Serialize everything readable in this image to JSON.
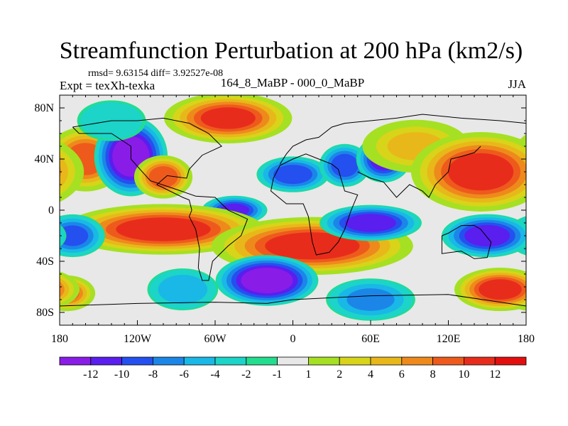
{
  "chart_data": {
    "type": "heatmap",
    "title": "Streamfunction Perturbation at 200 hPa (km2/s)",
    "subtitle_left_1": "rmsd= 9.63154 diff= 3.92527e-08",
    "subtitle_left_2": "Expt = texXh-texka",
    "subtitle_center": "164_8_MaBP - 000_0_MaBP",
    "subtitle_right": "JJA",
    "xlim": [
      -180,
      180
    ],
    "ylim": [
      -90,
      90
    ],
    "x_ticks": [
      {
        "value": -180,
        "label": "180"
      },
      {
        "value": -120,
        "label": "120W"
      },
      {
        "value": -60,
        "label": "60W"
      },
      {
        "value": 0,
        "label": "0"
      },
      {
        "value": 60,
        "label": "60E"
      },
      {
        "value": 120,
        "label": "120E"
      },
      {
        "value": 180,
        "label": "180"
      }
    ],
    "y_ticks": [
      {
        "value": 80,
        "label": "80N"
      },
      {
        "value": 40,
        "label": "40N"
      },
      {
        "value": 0,
        "label": "0"
      },
      {
        "value": -40,
        "label": "40S"
      },
      {
        "value": -80,
        "label": "80S"
      }
    ],
    "colorbar": {
      "labels": [
        "-12",
        "-10",
        "-8",
        "-6",
        "-4",
        "-2",
        "-1",
        "1",
        "2",
        "4",
        "6",
        "8",
        "10",
        "12"
      ],
      "colors": [
        "#8A1CE8",
        "#5A1EEE",
        "#2450F0",
        "#1B86E8",
        "#19B8E6",
        "#1CD4C8",
        "#22DD8E",
        "#E8E8E8",
        "#A6E022",
        "#D8D41A",
        "#E8B81A",
        "#EE8A1C",
        "#EE5A1C",
        "#E82C1C",
        "#E30F0F"
      ]
    },
    "field_centers": [
      {
        "lon": -160,
        "lat": 40,
        "value": 11,
        "radius_lon": 22,
        "radius_lat": 18
      },
      {
        "lon": -125,
        "lat": 42,
        "value": -14,
        "radius_lon": 20,
        "radius_lat": 22
      },
      {
        "lon": -100,
        "lat": 26,
        "value": 11,
        "radius_lon": 16,
        "radius_lat": 12
      },
      {
        "lon": -50,
        "lat": 72,
        "value": 12,
        "radius_lon": 35,
        "radius_lat": 14
      },
      {
        "lon": -140,
        "lat": 70,
        "value": -3,
        "radius_lon": 20,
        "radius_lat": 12
      },
      {
        "lon": -45,
        "lat": 0,
        "value": -10,
        "radius_lon": 18,
        "radius_lat": 8
      },
      {
        "lon": 0,
        "lat": 28,
        "value": -9,
        "radius_lon": 20,
        "radius_lat": 10
      },
      {
        "lon": 40,
        "lat": 35,
        "value": -9,
        "radius_lon": 14,
        "radius_lat": 12
      },
      {
        "lon": 70,
        "lat": 40,
        "value": -11,
        "radius_lon": 15,
        "radius_lat": 13
      },
      {
        "lon": 95,
        "lat": 50,
        "value": 6,
        "radius_lon": 30,
        "radius_lat": 15
      },
      {
        "lon": 145,
        "lat": 30,
        "value": 13,
        "radius_lon": 38,
        "radius_lat": 22
      },
      {
        "lon": -100,
        "lat": -15,
        "value": 13,
        "radius_lon": 55,
        "radius_lat": 14
      },
      {
        "lon": 15,
        "lat": -28,
        "value": 13,
        "radius_lon": 55,
        "radius_lat": 16
      },
      {
        "lon": -170,
        "lat": -20,
        "value": -8,
        "radius_lon": 18,
        "radius_lat": 12
      },
      {
        "lon": 60,
        "lat": -10,
        "value": -11,
        "radius_lon": 28,
        "radius_lat": 10
      },
      {
        "lon": 150,
        "lat": -20,
        "value": -11,
        "radius_lon": 25,
        "radius_lat": 12
      },
      {
        "lon": -20,
        "lat": -55,
        "value": -14,
        "radius_lon": 28,
        "radius_lat": 14
      },
      {
        "lon": -85,
        "lat": -62,
        "value": -5,
        "radius_lon": 20,
        "radius_lat": 12
      },
      {
        "lon": 60,
        "lat": -70,
        "value": -6,
        "radius_lon": 25,
        "radius_lat": 12
      },
      {
        "lon": -175,
        "lat": -65,
        "value": 10,
        "radius_lon": 16,
        "radius_lat": 10
      },
      {
        "lon": 160,
        "lat": -62,
        "value": 13,
        "radius_lon": 25,
        "radius_lat": 12
      }
    ]
  }
}
